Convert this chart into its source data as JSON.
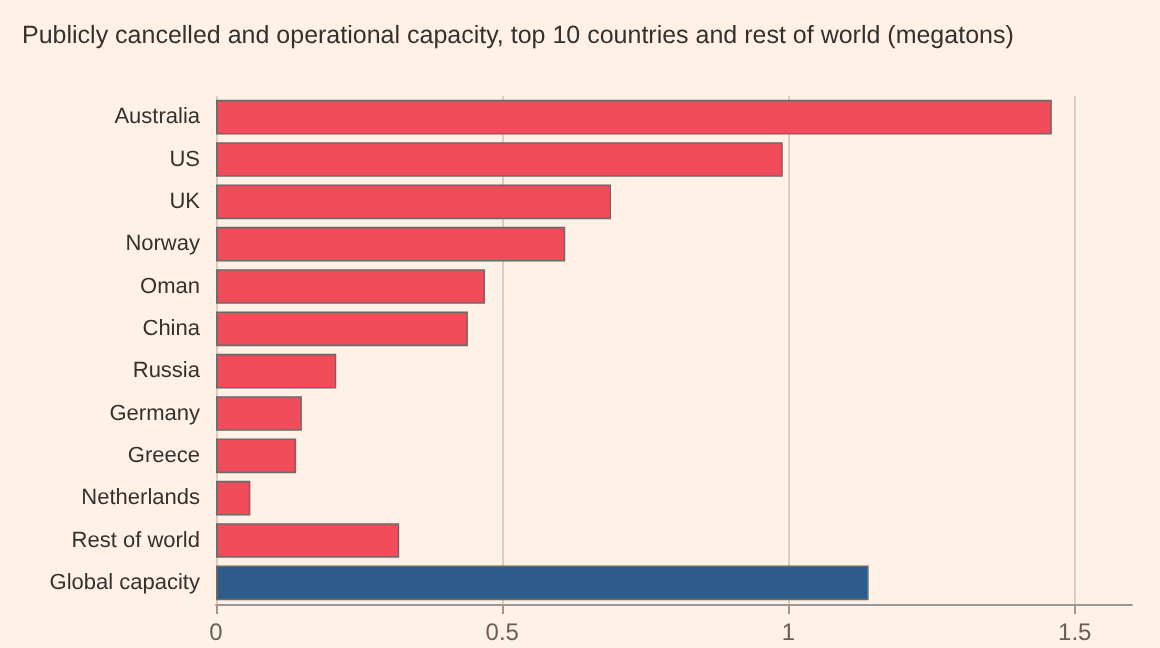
{
  "chart_data": {
    "type": "bar",
    "orientation": "horizontal",
    "title": "Publicly cancelled and operational capacity, top 10 countries and rest of world (megatons)",
    "categories": [
      "Australia",
      "US",
      "UK",
      "Norway",
      "Oman",
      "China",
      "Russia",
      "Germany",
      "Greece",
      "Netherlands",
      "Rest of world",
      "Global capacity"
    ],
    "values": [
      1.46,
      0.99,
      0.69,
      0.61,
      0.47,
      0.44,
      0.21,
      0.15,
      0.14,
      0.06,
      0.32,
      1.14
    ],
    "colors": [
      "#f04c5a",
      "#f04c5a",
      "#f04c5a",
      "#f04c5a",
      "#f04c5a",
      "#f04c5a",
      "#f04c5a",
      "#f04c5a",
      "#f04c5a",
      "#f04c5a",
      "#f04c5a",
      "#2e5c8a"
    ],
    "xlim": [
      0,
      1.6
    ],
    "xticks": [
      0,
      0.5,
      1,
      1.5
    ],
    "grid": "x"
  }
}
